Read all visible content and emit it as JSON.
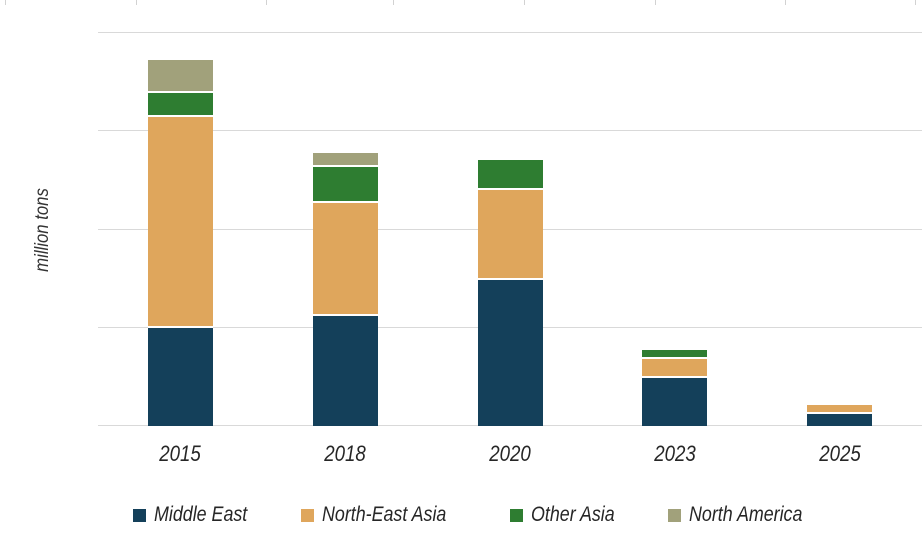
{
  "figure": {
    "y_axis_title": "million tons",
    "grid_color": "#d9d9d9",
    "background_color": "#ffffff",
    "text_color": "#262626"
  },
  "decor": {
    "top_tick_positions": [
      5,
      136,
      266,
      393,
      524,
      655,
      785,
      915
    ]
  },
  "legend": {
    "position": "bottom",
    "items": [
      "Middle East",
      "North-East Asia",
      "Other Asia",
      "North America"
    ]
  },
  "chart_data": {
    "type": "bar",
    "stacked": true,
    "title": "",
    "xlabel": "",
    "ylabel": "million tons",
    "categories": [
      "2015",
      "2018",
      "2020",
      "2023",
      "2025"
    ],
    "series": [
      {
        "name": "Middle East",
        "color": "#14405a",
        "values": [
          20.0,
          22.4,
          29.7,
          9.8,
          2.4
        ]
      },
      {
        "name": "North-East Asia",
        "color": "#dfa65c",
        "values": [
          42.9,
          23.1,
          18.3,
          3.9,
          1.8
        ]
      },
      {
        "name": "Other Asia",
        "color": "#2e7d31",
        "values": [
          4.8,
          7.3,
          6.2,
          1.8,
          0
        ]
      },
      {
        "name": "North America",
        "color": "#a1a17b",
        "values": [
          6.8,
          2.8,
          0,
          0,
          0
        ]
      }
    ],
    "totals": [
      74.5,
      55.6,
      54.2,
      15.5,
      4.2
    ],
    "ylim": [
      0,
      80
    ],
    "gridline_step": 20,
    "grid": true,
    "y_tick_labels_visible": false,
    "legend_position": "bottom"
  }
}
